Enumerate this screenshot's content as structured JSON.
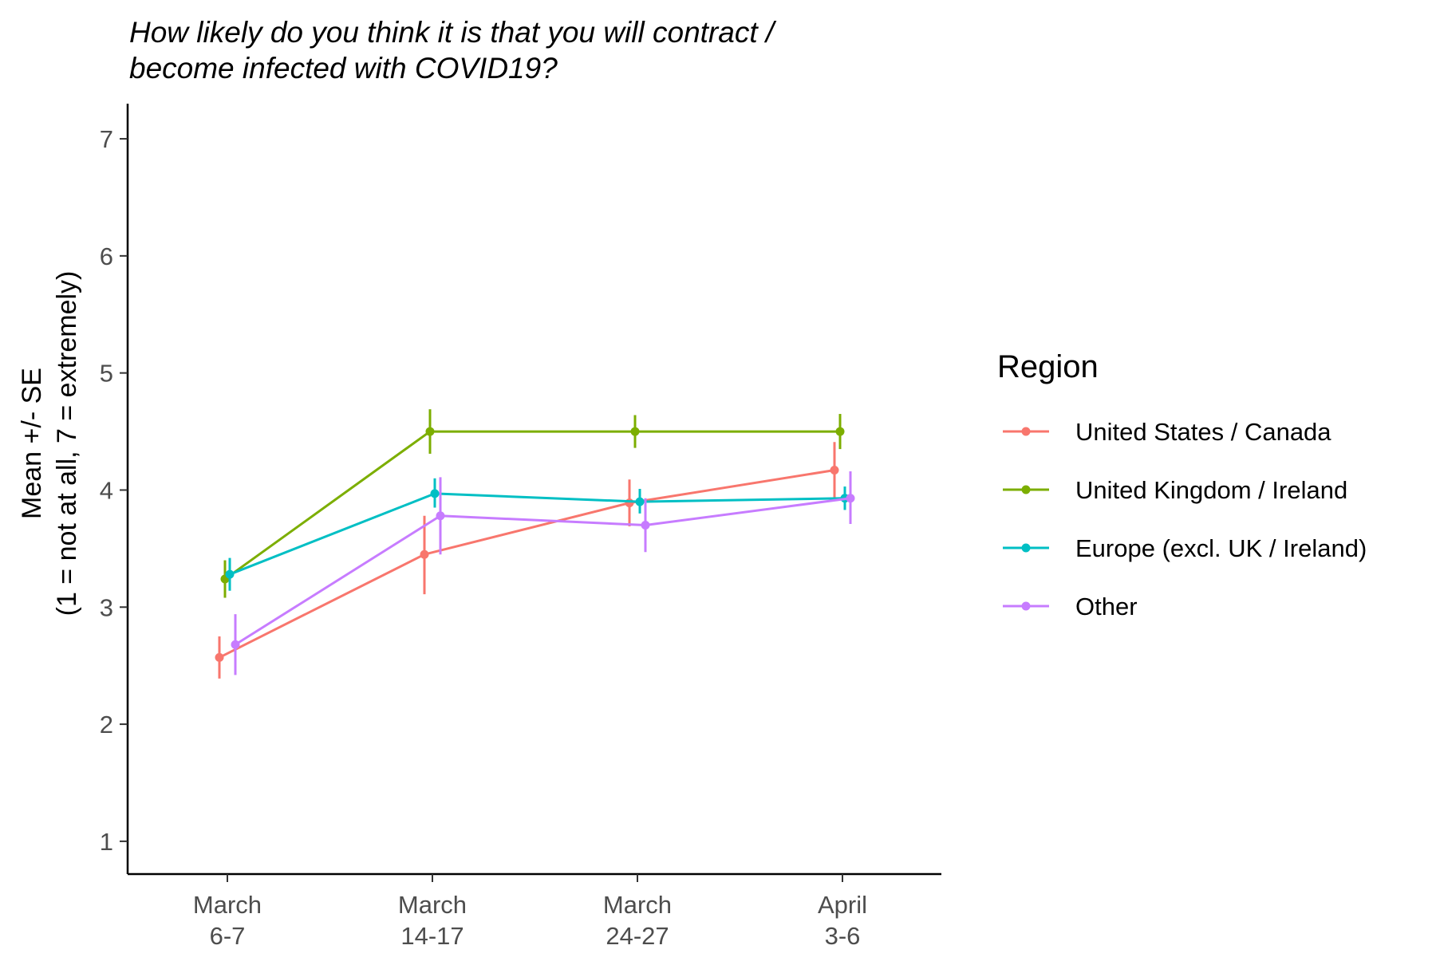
{
  "chart_data": {
    "type": "line",
    "title_lines": [
      "How likely do you think it is that you will contract /",
      "become infected with COVID19?"
    ],
    "ylabel_lines": [
      "Mean +/- SE",
      "(1 = not at all, 7 = extremely)"
    ],
    "xlabel": "",
    "categories": [
      [
        "March",
        "6-7"
      ],
      [
        "March",
        "14-17"
      ],
      [
        "March",
        "24-27"
      ],
      [
        "April",
        "3-6"
      ]
    ],
    "yticks": [
      1,
      2,
      3,
      4,
      5,
      6,
      7
    ],
    "ylim": [
      0.72,
      7.3
    ],
    "grid": false,
    "legend": {
      "title": "Region",
      "placement": "right"
    },
    "series": [
      {
        "name": "United States / Canada",
        "color": "#F8766D",
        "values": [
          2.57,
          3.45,
          3.89,
          4.17
        ],
        "se_low": [
          2.39,
          3.11,
          3.69,
          3.92
        ],
        "se_high": [
          2.75,
          3.78,
          4.09,
          4.41
        ]
      },
      {
        "name": "United Kingdom / Ireland",
        "color": "#7CAE00",
        "values": [
          3.24,
          4.5,
          4.5,
          4.5
        ],
        "se_low": [
          3.08,
          4.31,
          4.36,
          4.35
        ],
        "se_high": [
          3.4,
          4.69,
          4.64,
          4.65
        ]
      },
      {
        "name": "Europe (excl. UK / Ireland)",
        "color": "#00BFC4",
        "values": [
          3.28,
          3.97,
          3.9,
          3.93
        ],
        "se_low": [
          3.14,
          3.85,
          3.8,
          3.83
        ],
        "se_high": [
          3.42,
          4.1,
          4.01,
          4.03
        ]
      },
      {
        "name": "Other",
        "color": "#C77CFF",
        "values": [
          2.68,
          3.78,
          3.7,
          3.93
        ],
        "se_low": [
          2.42,
          3.45,
          3.47,
          3.71
        ],
        "se_high": [
          2.94,
          4.11,
          3.93,
          4.16
        ]
      }
    ]
  }
}
